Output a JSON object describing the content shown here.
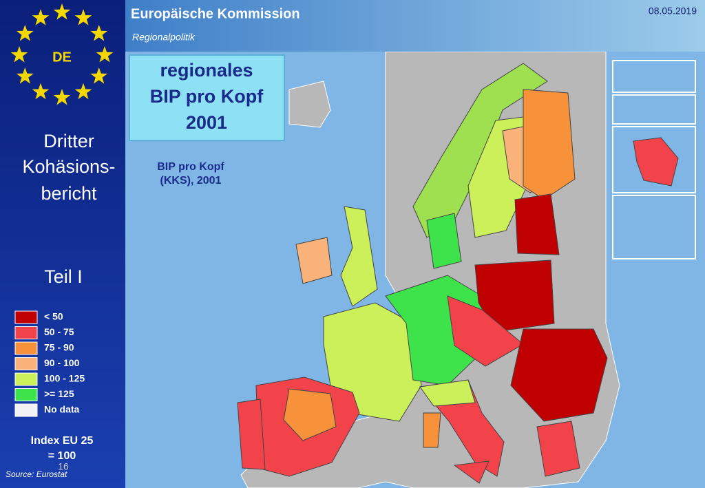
{
  "header": {
    "title": "Europäische Kommission",
    "subtitle": "Regionalpolitik",
    "date": "08.05.2019"
  },
  "sidebar": {
    "badge": "DE",
    "title_lines": [
      "Dritter",
      "Kohäsions-",
      "bericht"
    ],
    "part": "Teil I"
  },
  "legend": {
    "items": [
      {
        "label": "< 50",
        "color": "#c00000"
      },
      {
        "label": "50 - 75",
        "color": "#f2424a"
      },
      {
        "label": "75 - 90",
        "color": "#f7923a"
      },
      {
        "label": "90 - 100",
        "color": "#f9b37a"
      },
      {
        "label": "100 - 125",
        "color": "#cbf05a"
      },
      {
        "label": ">= 125",
        "color": "#3ee24a"
      },
      {
        "label": "No data",
        "color": "#f2f2f4"
      }
    ],
    "note_lines": [
      "Index EU 25",
      "= 100"
    ]
  },
  "map": {
    "title_lines": [
      "regionales",
      "BIP pro Kopf",
      "2001"
    ],
    "subtitle_lines": [
      "BIP pro Kopf",
      "(KKS), 2001"
    ]
  },
  "footer": {
    "slide_number": "16",
    "source": "Source: Eurostat"
  }
}
